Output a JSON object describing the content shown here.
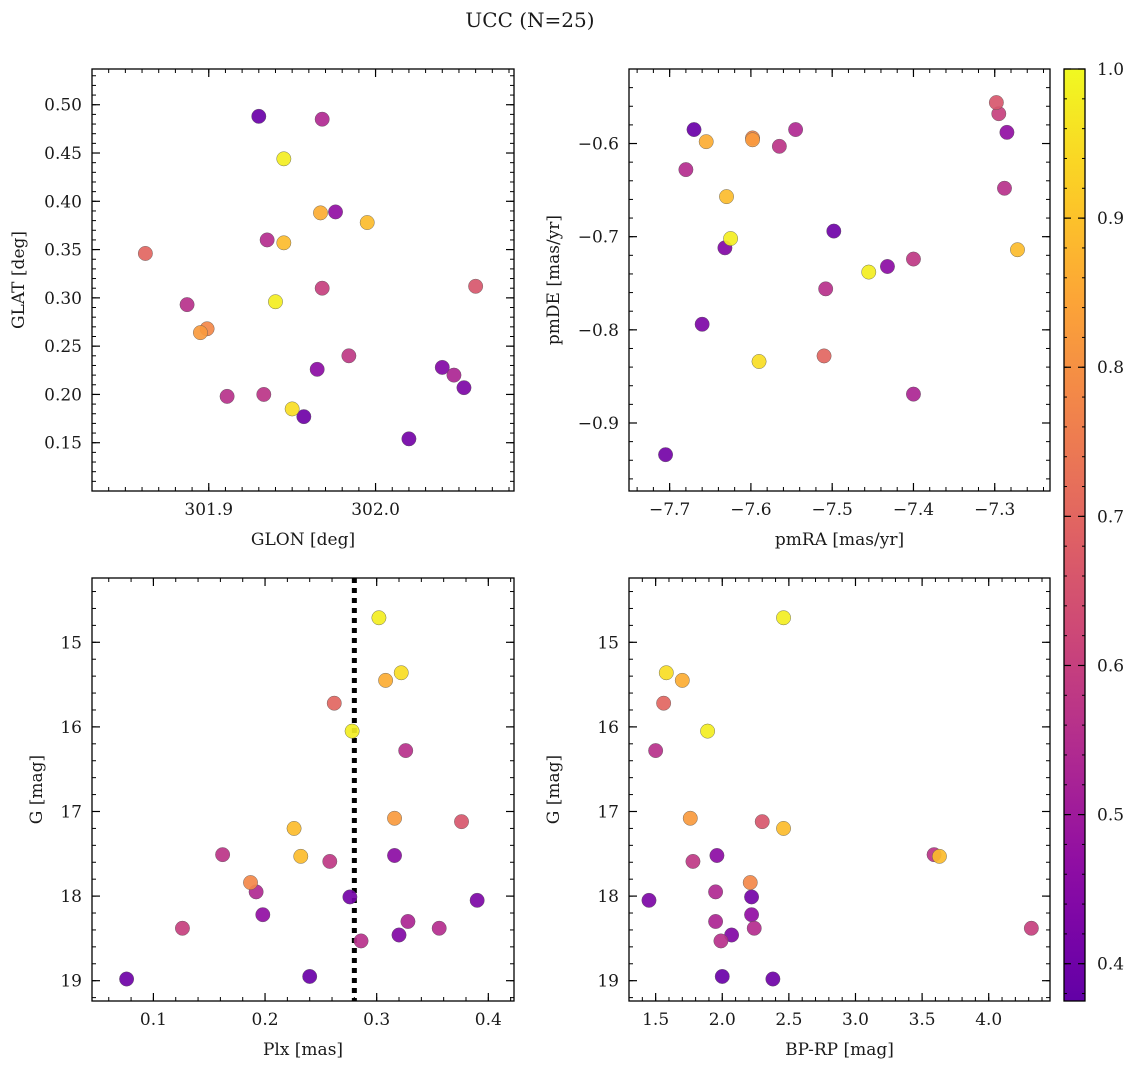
{
  "chart_data": {
    "type": "scatter",
    "title": "UCC (N=25)",
    "colorbar": {
      "range": [
        0.375,
        1.0
      ],
      "ticks": [
        0.4,
        0.5,
        0.6,
        0.7,
        0.8,
        0.9,
        1.0
      ],
      "tick_labels": [
        "0.4",
        "0.5",
        "0.6",
        "0.7",
        "0.8",
        "0.9",
        "1.0"
      ],
      "colormap": "plasma"
    },
    "stars": [
      {
        "glon": 301.93,
        "glat": 0.488,
        "pmra": -7.67,
        "pmde": -0.585,
        "plx": 0.24,
        "g": 18.95,
        "bprp": 2.0,
        "prob": 0.39
      },
      {
        "glon": 301.968,
        "glat": 0.485,
        "pmra": -7.545,
        "pmde": -0.585,
        "plx": 0.192,
        "g": 17.95,
        "bprp": 1.95,
        "prob": 0.54
      },
      {
        "glon": 301.945,
        "glat": 0.444,
        "pmra": -7.455,
        "pmde": -0.738,
        "plx": 0.302,
        "g": 14.71,
        "bprp": 2.46,
        "prob": 0.98
      },
      {
        "glon": 301.967,
        "glat": 0.388,
        "pmra": -7.655,
        "pmde": -0.598,
        "plx": 0.308,
        "g": 15.45,
        "bprp": 1.7,
        "prob": 0.86
      },
      {
        "glon": 301.976,
        "glat": 0.389,
        "pmra": -7.285,
        "pmde": -0.588,
        "plx": 0.198,
        "g": 18.22,
        "bprp": 2.22,
        "prob": 0.47
      },
      {
        "glon": 301.995,
        "glat": 0.378,
        "pmra": -7.272,
        "pmde": -0.714,
        "plx": 0.226,
        "g": 17.2,
        "bprp": 2.46,
        "prob": 0.89
      },
      {
        "glon": 301.935,
        "glat": 0.36,
        "pmra": -7.68,
        "pmde": -0.628,
        "plx": 0.356,
        "g": 18.38,
        "bprp": 2.24,
        "prob": 0.55
      },
      {
        "glon": 301.945,
        "glat": 0.357,
        "pmra": -7.63,
        "pmde": -0.657,
        "plx": 0.232,
        "g": 17.53,
        "bprp": 3.63,
        "prob": 0.89
      },
      {
        "glon": 301.862,
        "glat": 0.346,
        "pmra": -7.51,
        "pmde": -0.828,
        "plx": 0.262,
        "g": 15.72,
        "bprp": 1.56,
        "prob": 0.7
      },
      {
        "glon": 302.06,
        "glat": 0.312,
        "pmra": -7.298,
        "pmde": -0.556,
        "plx": 0.376,
        "g": 17.12,
        "bprp": 2.3,
        "prob": 0.66
      },
      {
        "glon": 301.968,
        "glat": 0.31,
        "pmra": -7.295,
        "pmde": -0.568,
        "plx": 0.126,
        "g": 18.38,
        "bprp": 4.32,
        "prob": 0.6
      },
      {
        "glon": 301.94,
        "glat": 0.296,
        "pmra": -7.625,
        "pmde": -0.702,
        "plx": 0.278,
        "g": 16.05,
        "bprp": 1.89,
        "prob": 0.98
      },
      {
        "glon": 301.887,
        "glat": 0.293,
        "pmra": -7.288,
        "pmde": -0.648,
        "plx": 0.326,
        "g": 16.28,
        "bprp": 1.5,
        "prob": 0.56
      },
      {
        "glon": 301.899,
        "glat": 0.268,
        "pmra": -7.598,
        "pmde": -0.594,
        "plx": 0.187,
        "g": 17.84,
        "bprp": 2.21,
        "prob": 0.78
      },
      {
        "glon": 301.895,
        "glat": 0.264,
        "pmra": -7.598,
        "pmde": -0.596,
        "plx": 0.316,
        "g": 17.08,
        "bprp": 1.76,
        "prob": 0.82
      },
      {
        "glon": 301.984,
        "glat": 0.24,
        "pmra": -7.4,
        "pmde": -0.724,
        "plx": 0.258,
        "g": 17.59,
        "bprp": 1.78,
        "prob": 0.58
      },
      {
        "glon": 301.965,
        "glat": 0.226,
        "pmra": -7.432,
        "pmde": -0.732,
        "plx": 0.316,
        "g": 17.52,
        "bprp": 1.96,
        "prob": 0.46
      },
      {
        "glon": 302.04,
        "glat": 0.228,
        "pmra": -7.632,
        "pmde": -0.712,
        "plx": 0.32,
        "g": 18.46,
        "bprp": 2.07,
        "prob": 0.44
      },
      {
        "glon": 302.047,
        "glat": 0.22,
        "pmra": -7.4,
        "pmde": -0.869,
        "plx": 0.328,
        "g": 18.3,
        "bprp": 1.95,
        "prob": 0.53
      },
      {
        "glon": 302.053,
        "glat": 0.207,
        "pmra": -7.66,
        "pmde": -0.794,
        "plx": 0.39,
        "g": 18.05,
        "bprp": 1.45,
        "prob": 0.43
      },
      {
        "glon": 301.911,
        "glat": 0.198,
        "pmra": -7.508,
        "pmde": -0.756,
        "plx": 0.286,
        "g": 18.53,
        "bprp": 1.99,
        "prob": 0.56
      },
      {
        "glon": 301.933,
        "glat": 0.2,
        "pmra": -7.565,
        "pmde": -0.603,
        "plx": 0.162,
        "g": 17.51,
        "bprp": 3.59,
        "prob": 0.57
      },
      {
        "glon": 301.95,
        "glat": 0.185,
        "pmra": -7.59,
        "pmde": -0.834,
        "plx": 0.322,
        "g": 15.36,
        "bprp": 1.58,
        "prob": 0.95
      },
      {
        "glon": 301.957,
        "glat": 0.177,
        "pmra": -7.498,
        "pmde": -0.694,
        "plx": 0.076,
        "g": 18.98,
        "bprp": 2.38,
        "prob": 0.4
      },
      {
        "glon": 302.02,
        "glat": 0.154,
        "pmra": -7.705,
        "pmde": -0.934,
        "plx": 0.276,
        "g": 18.01,
        "bprp": 2.22,
        "prob": 0.41
      }
    ],
    "panels": [
      {
        "id": "glon-glat",
        "x_key": "glon",
        "y_key": "glat",
        "xlabel": "GLON [deg]",
        "ylabel": "GLAT [deg]",
        "xlim": [
          301.83,
          302.083
        ],
        "ylim": [
          0.1,
          0.537
        ],
        "y_inverted": false,
        "xticks": [
          301.9,
          302.0
        ],
        "xtick_labels": [
          "301.9",
          "302.0"
        ],
        "xminor": 0.01,
        "yticks": [
          0.15,
          0.2,
          0.25,
          0.3,
          0.35,
          0.4,
          0.45,
          0.5
        ],
        "ytick_labels": [
          "0.15",
          "0.20",
          "0.25",
          "0.30",
          "0.35",
          "0.40",
          "0.45",
          "0.50"
        ],
        "yminor": 0.01,
        "vline": null
      },
      {
        "id": "pm",
        "x_key": "pmra",
        "y_key": "pmde",
        "xlabel": "pmRA [mas/yr]",
        "ylabel": "pmDE [mas/yr]",
        "xlim": [
          -7.75,
          -7.232
        ],
        "ylim": [
          -0.973,
          -0.52
        ],
        "y_inverted": false,
        "xticks": [
          -7.7,
          -7.6,
          -7.5,
          -7.4,
          -7.3
        ],
        "xtick_labels": [
          "−7.7",
          "−7.6",
          "−7.5",
          "−7.4",
          "−7.3"
        ],
        "xminor": 0.02,
        "yticks": [
          -0.9,
          -0.8,
          -0.7,
          -0.6
        ],
        "ytick_labels": [
          "−0.9",
          "−0.8",
          "−0.7",
          "−0.6"
        ],
        "yminor": 0.02,
        "vline": null
      },
      {
        "id": "plx-g",
        "x_key": "plx",
        "y_key": "g",
        "xlabel": "Plx [mas]",
        "ylabel": "G [mag]",
        "xlim": [
          0.045,
          0.423
        ],
        "ylim": [
          14.24,
          19.24
        ],
        "y_inverted": true,
        "xticks": [
          0.1,
          0.2,
          0.3,
          0.4
        ],
        "xtick_labels": [
          "0.1",
          "0.2",
          "0.3",
          "0.4"
        ],
        "xminor": 0.02,
        "yticks": [
          15,
          16,
          17,
          18,
          19
        ],
        "ytick_labels": [
          "15",
          "16",
          "17",
          "18",
          "19"
        ],
        "yminor": 0.2,
        "vline": 0.28
      },
      {
        "id": "cmd",
        "x_key": "bprp",
        "y_key": "g",
        "xlabel": "BP-RP [mag]",
        "ylabel": "G [mag]",
        "xlim": [
          1.3,
          4.46
        ],
        "ylim": [
          14.24,
          19.24
        ],
        "y_inverted": true,
        "xticks": [
          1.5,
          2.0,
          2.5,
          3.0,
          3.5,
          4.0
        ],
        "xtick_labels": [
          "1.5",
          "2.0",
          "2.5",
          "3.0",
          "3.5",
          "4.0"
        ],
        "xminor": 0.1,
        "yticks": [
          15,
          16,
          17,
          18,
          19
        ],
        "ytick_labels": [
          "15",
          "16",
          "17",
          "18",
          "19"
        ],
        "yminor": 0.2,
        "vline": null
      }
    ]
  }
}
